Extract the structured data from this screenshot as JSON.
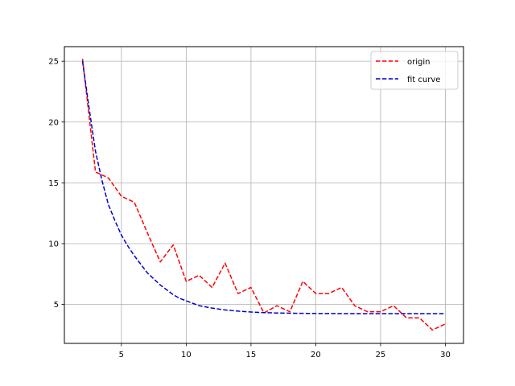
{
  "chart_data": {
    "type": "line",
    "title": "",
    "xlabel": "",
    "ylabel": "",
    "xlim": [
      0.6,
      31.4
    ],
    "ylim": [
      1.8,
      26.2
    ],
    "xticks": [
      5,
      10,
      15,
      20,
      25,
      30
    ],
    "yticks": [
      5,
      10,
      15,
      20,
      25
    ],
    "grid": true,
    "legend_position": "top-right",
    "series": [
      {
        "name": "origin",
        "color": "#ff0000",
        "style": "dashed",
        "x": [
          2,
          3,
          4,
          5,
          6,
          7,
          8,
          9,
          10,
          11,
          12,
          13,
          14,
          15,
          16,
          17,
          18,
          19,
          20,
          21,
          22,
          23,
          24,
          25,
          26,
          27,
          28,
          29,
          30
        ],
        "y": [
          25.2,
          15.9,
          15.4,
          13.9,
          13.4,
          10.9,
          8.5,
          9.9,
          6.9,
          7.4,
          6.4,
          8.4,
          5.9,
          6.4,
          4.3,
          4.9,
          4.4,
          6.9,
          5.9,
          5.9,
          6.4,
          4.9,
          4.4,
          4.4,
          4.9,
          3.9,
          3.9,
          2.9,
          3.4
        ]
      },
      {
        "name": "fit curve",
        "color": "#0000cc",
        "style": "dashed",
        "x": [
          2,
          2.5,
          3,
          3.5,
          4,
          4.5,
          5,
          5.5,
          6,
          6.5,
          7,
          7.5,
          8,
          8.5,
          9,
          9.5,
          10,
          11,
          12,
          13,
          14,
          15,
          16,
          17,
          18,
          19,
          20,
          22,
          24,
          26,
          28,
          30
        ],
        "y": [
          25.0,
          21.2,
          17.6,
          15.2,
          13.2,
          11.9,
          10.7,
          9.8,
          9.0,
          8.3,
          7.6,
          7.1,
          6.6,
          6.2,
          5.8,
          5.5,
          5.3,
          4.9,
          4.7,
          4.55,
          4.45,
          4.38,
          4.33,
          4.3,
          4.28,
          4.27,
          4.26,
          4.25,
          4.25,
          4.25,
          4.25,
          4.25
        ]
      }
    ]
  }
}
